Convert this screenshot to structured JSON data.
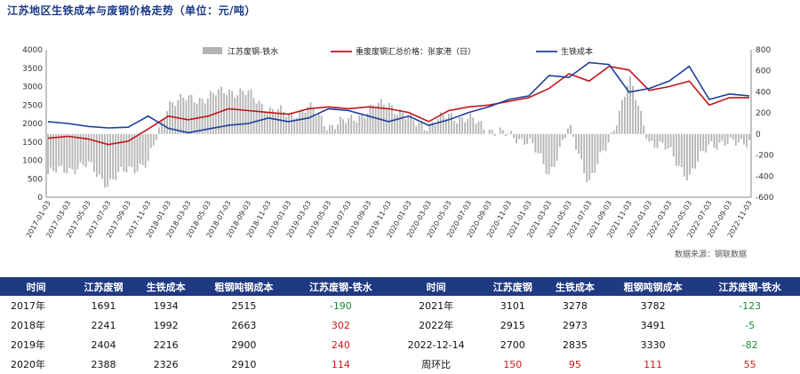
{
  "title": "江苏地区生铁成本与废钢价格走势（单位：元/吨）",
  "source": "数据来源：钢联数据",
  "chart_data": {
    "type": "line",
    "left_axis": {
      "min": 0,
      "max": 4000,
      "ticks": [
        "0",
        "500",
        "1000",
        "1500",
        "2000",
        "2500",
        "3000",
        "3500",
        "4000"
      ]
    },
    "right_axis": {
      "min": -600,
      "max": 800,
      "ticks": [
        "-600",
        "-400",
        "-200",
        "0",
        "200",
        "400",
        "600",
        "800"
      ]
    },
    "legend": [
      {
        "name": "江苏废钢-铁水",
        "kind": "bar",
        "color": "#b4b4b4"
      },
      {
        "name": "重废废钢汇总价格：张家港（日）",
        "kind": "line",
        "color": "#c0161c"
      },
      {
        "name": "生铁成本",
        "kind": "line",
        "color": "#1f3f9a"
      }
    ],
    "x_labels": [
      "2017-01-03",
      "2017-03-03",
      "2017-05-03",
      "2017-07-03",
      "2017-09-03",
      "2017-11-03",
      "2018-01-03",
      "2018-03-03",
      "2018-05-03",
      "2018-07-03",
      "2018-09-03",
      "2018-11-03",
      "2019-01-03",
      "2019-03-03",
      "2019-05-03",
      "2019-07-03",
      "2019-09-03",
      "2019-11-03",
      "2020-01-03",
      "2020-03-03",
      "2020-05-03",
      "2020-07-03",
      "2020-09-03",
      "2020-11-03",
      "2021-01-03",
      "2021-03-03",
      "2021-05-03",
      "2021-07-03",
      "2021-09-03",
      "2021-11-03",
      "2022-01-03",
      "2022-03-03",
      "2022-05-03",
      "2022-07-03",
      "2022-09-03",
      "2022-11-03"
    ],
    "series": [
      {
        "name": "重废废钢汇总价格：张家港（日）",
        "axis": "left",
        "values": [
          1600,
          1650,
          1580,
          1430,
          1520,
          1850,
          2200,
          2100,
          2200,
          2400,
          2350,
          2300,
          2250,
          2400,
          2450,
          2400,
          2450,
          2400,
          2300,
          2050,
          2350,
          2450,
          2500,
          2600,
          2700,
          2950,
          3350,
          3150,
          3550,
          3450,
          2900,
          3000,
          3150,
          2500,
          2700,
          2700
        ]
      },
      {
        "name": "生铁成本",
        "axis": "left",
        "values": [
          2050,
          2000,
          1920,
          1880,
          1900,
          2200,
          1870,
          1750,
          1850,
          1950,
          2000,
          2150,
          2050,
          2150,
          2400,
          2350,
          2200,
          2050,
          2200,
          1950,
          2100,
          2300,
          2450,
          2650,
          2750,
          3300,
          3250,
          3650,
          3600,
          2850,
          2950,
          3150,
          3550,
          2650,
          2800,
          2750
        ]
      },
      {
        "name": "江苏废钢-铁水",
        "axis": "right",
        "values": [
          -380,
          -330,
          -300,
          -470,
          -330,
          -280,
          300,
          330,
          350,
          420,
          380,
          240,
          180,
          250,
          80,
          120,
          230,
          300,
          130,
          80,
          180,
          140,
          50,
          -20,
          -60,
          -380,
          60,
          -450,
          -80,
          520,
          -60,
          -160,
          -420,
          -80,
          -100,
          -50
        ]
      }
    ]
  },
  "table": {
    "headers": [
      "时间",
      "江苏废钢",
      "生铁成本",
      "粗钢吨钢成本",
      "江苏废钢-铁水",
      "时间",
      "江苏废钢",
      "生铁成本",
      "粗钢吨钢成本",
      "江苏废钢-铁水"
    ],
    "rows": [
      [
        "2017年",
        "1691",
        "1934",
        "2515",
        "-190",
        "2021年",
        "3101",
        "3278",
        "3782",
        "-123"
      ],
      [
        "2018年",
        "2241",
        "1992",
        "2663",
        "302",
        "2022年",
        "2915",
        "2973",
        "3491",
        "-5"
      ],
      [
        "2019年",
        "2404",
        "2216",
        "2900",
        "240",
        "2022-12-14",
        "2700",
        "2835",
        "3330",
        "-82"
      ],
      [
        "2020年",
        "2388",
        "2326",
        "2910",
        "114",
        "周环比",
        "150",
        "95",
        "111",
        "55"
      ]
    ],
    "cell_colors": [
      [
        "",
        "",
        "",
        "",
        "green",
        "",
        "",
        "",
        "",
        "green"
      ],
      [
        "",
        "",
        "",
        "",
        "red",
        "",
        "",
        "",
        "",
        "green"
      ],
      [
        "",
        "",
        "",
        "",
        "red",
        "",
        "",
        "",
        "",
        "green"
      ],
      [
        "",
        "",
        "",
        "",
        "red",
        "",
        "red",
        "red",
        "red",
        "red"
      ]
    ]
  }
}
